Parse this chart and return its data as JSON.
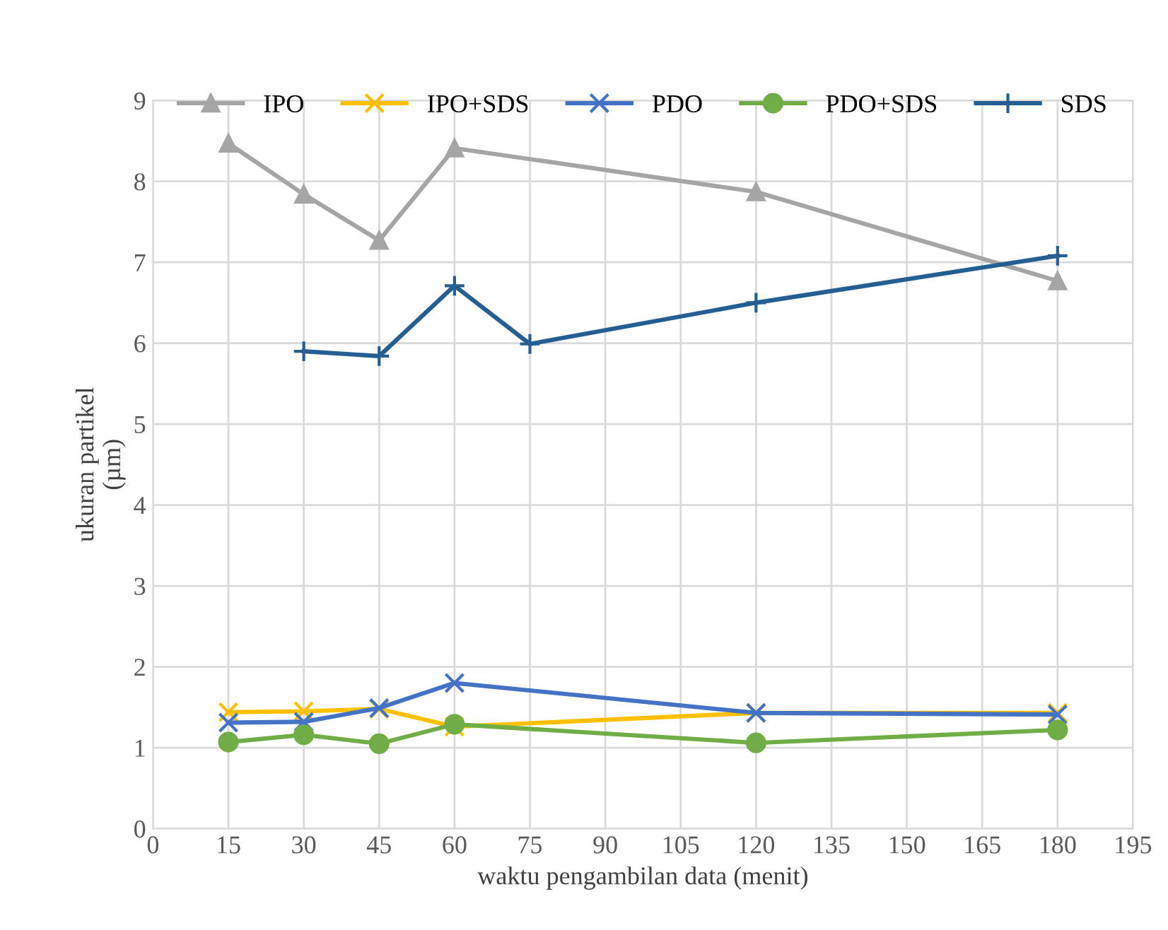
{
  "chart_data": {
    "type": "line",
    "xlabel": "waktu pengambilan data (menit)",
    "ylabel": "ukuran partikel\n(µm)",
    "xlim": [
      0,
      195
    ],
    "xticks": [
      0,
      15,
      30,
      45,
      60,
      75,
      90,
      105,
      120,
      135,
      150,
      165,
      180,
      195
    ],
    "ylim": [
      0,
      9
    ],
    "yticks": [
      0,
      1,
      2,
      3,
      4,
      5,
      6,
      7,
      8,
      9
    ],
    "grid": true,
    "legend": "top",
    "series": [
      {
        "name": "IPO",
        "color": "#a5a5a5",
        "marker": "triangle",
        "x": [
          15,
          30,
          45,
          60,
          120,
          180
        ],
        "values": [
          8.47,
          7.84,
          7.27,
          8.41,
          7.87,
          6.77
        ]
      },
      {
        "name": "IPO+SDS",
        "color": "#ffc000",
        "marker": "cross",
        "x": [
          15,
          30,
          45,
          60,
          120,
          180
        ],
        "values": [
          1.44,
          1.45,
          1.48,
          1.26,
          1.43,
          1.43
        ]
      },
      {
        "name": "PDO",
        "color": "#4472c4",
        "marker": "cross",
        "x": [
          15,
          30,
          45,
          60,
          120,
          180
        ],
        "values": [
          1.31,
          1.32,
          1.49,
          1.8,
          1.43,
          1.41
        ]
      },
      {
        "name": "PDO+SDS",
        "color": "#70ad47",
        "marker": "circle",
        "x": [
          15,
          30,
          45,
          60,
          120,
          180
        ],
        "values": [
          1.07,
          1.16,
          1.05,
          1.29,
          1.06,
          1.22
        ]
      },
      {
        "name": "SDS",
        "color": "#255e91",
        "marker": "plus",
        "x": [
          30,
          45,
          60,
          75,
          120,
          180
        ],
        "values": [
          5.9,
          5.84,
          6.71,
          5.99,
          6.5,
          7.08
        ]
      }
    ]
  }
}
